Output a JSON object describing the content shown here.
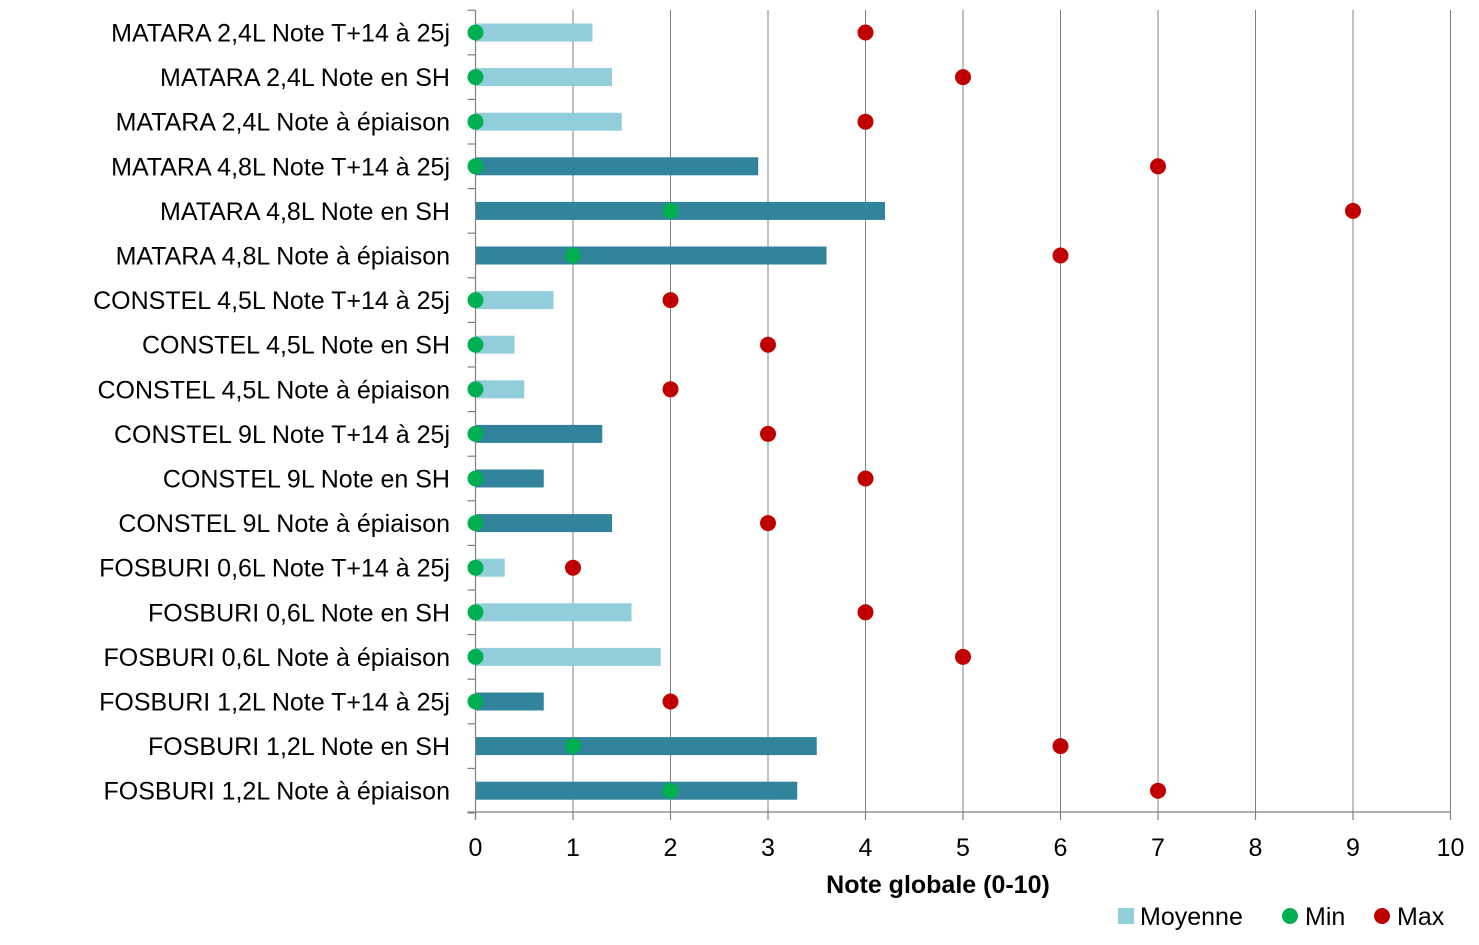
{
  "chart_data": {
    "type": "bar",
    "orientation": "horizontal",
    "xlabel": "Note globale (0-10)",
    "xlim": [
      0,
      10
    ],
    "xticks": [
      "0",
      "1",
      "2",
      "3",
      "4",
      "5",
      "6",
      "7",
      "8",
      "9",
      "10"
    ],
    "grid": "vertical",
    "legend_position": "bottom-right",
    "colors": {
      "moyenne_light": "#92CDDC",
      "moyenne_dark": "#31849B",
      "min": "#00B050",
      "max": "#C00000",
      "grid": "#808080",
      "axis": "#808080"
    },
    "categories": [
      "MATARA 2,4L Note T+14 à 25j",
      "MATARA 2,4L Note en SH",
      "MATARA 2,4L Note à épiaison",
      "MATARA 4,8L Note T+14 à 25j",
      "MATARA 4,8L Note en SH",
      "MATARA 4,8L Note à épiaison",
      "CONSTEL 4,5L Note T+14 à 25j",
      "CONSTEL 4,5L Note en SH",
      "CONSTEL 4,5L Note à épiaison",
      "CONSTEL 9L Note T+14 à 25j",
      "CONSTEL 9L Note en SH",
      "CONSTEL 9L Note à épiaison",
      "FOSBURI 0,6L Note T+14 à 25j",
      "FOSBURI 0,6L Note en SH",
      "FOSBURI 0,6L Note à épiaison",
      "FOSBURI 1,2L Note T+14 à 25j",
      "FOSBURI 1,2L Note en SH",
      "FOSBURI 1,2L Note à épiaison"
    ],
    "bar_shade": [
      "light",
      "light",
      "light",
      "dark",
      "dark",
      "dark",
      "light",
      "light",
      "light",
      "dark",
      "dark",
      "dark",
      "light",
      "light",
      "light",
      "dark",
      "dark",
      "dark"
    ],
    "series": [
      {
        "name": "Moyenne",
        "kind": "bar",
        "values": [
          1.2,
          1.4,
          1.5,
          2.9,
          4.2,
          3.6,
          0.8,
          0.4,
          0.5,
          1.3,
          0.7,
          1.4,
          0.3,
          1.6,
          1.9,
          0.7,
          3.5,
          3.3
        ]
      },
      {
        "name": "Min",
        "kind": "marker",
        "values": [
          0,
          0,
          0,
          0,
          2,
          1,
          0,
          0,
          0,
          0,
          0,
          0,
          0,
          0,
          0,
          0,
          1,
          2
        ]
      },
      {
        "name": "Max",
        "kind": "marker",
        "values": [
          4,
          5,
          4,
          7,
          9,
          6,
          2,
          3,
          2,
          3,
          4,
          3,
          1,
          4,
          5,
          2,
          6,
          7
        ]
      }
    ]
  }
}
